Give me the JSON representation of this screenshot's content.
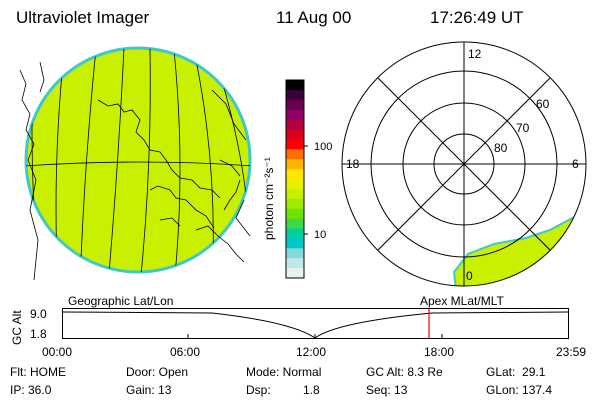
{
  "header": {
    "title": "Ultraviolet Imager",
    "date": "11 Aug 00",
    "time": "17:26:49 UT"
  },
  "colorbar": {
    "label": "photon cm⁻²s⁻¹",
    "ticks": [
      "100",
      "10"
    ],
    "colors": [
      "#000000",
      "#3a003a",
      "#6a0050",
      "#8e0064",
      "#b40040",
      "#d8001c",
      "#ff0000",
      "#ff7000",
      "#ffb400",
      "#ffe600",
      "#e8f000",
      "#c8f000",
      "#a0ec00",
      "#70e400",
      "#40d840",
      "#00d0a0",
      "#00c8c8",
      "#80dcdc",
      "#c0e8e8",
      "#e8f0f0"
    ]
  },
  "geo_map": {
    "label": "Geographic Lat/Lon",
    "disk_color": "#c8f000",
    "disk_edge": "#40c8c8"
  },
  "polar_plot": {
    "label": "Apex MLat/MLT",
    "mlt_labels": [
      "12",
      "18",
      "6",
      "0"
    ],
    "lat_labels": [
      "60",
      "70",
      "80"
    ]
  },
  "altitude_plot": {
    "axis_title": "GC Alt",
    "y_ticks": [
      "9.0",
      "1.8"
    ],
    "x_ticks": [
      "00:00",
      "06:00",
      "12:00",
      "18:00",
      "23:59"
    ],
    "current_marker_color": "#ff0000"
  },
  "status": {
    "flt": "Flt: HOME",
    "ip": "IP: 36.0",
    "door": "Door: Open",
    "gain": "Gain: 13",
    "mode": "Mode: Normal",
    "dsp_label": "Dsp:",
    "dsp_value": "1.8",
    "gc_alt": "GC Alt: 8.3 Re",
    "seq": "Seq: 13",
    "glat": "GLat:  29.1",
    "glon": "GLon: 137.4"
  }
}
